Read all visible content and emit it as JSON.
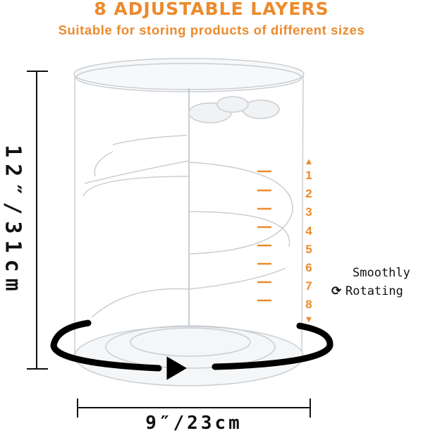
{
  "header": {
    "title": "8 ADJUSTABLE LAYERS",
    "subtitle": "Suitable for storing products of different sizes"
  },
  "dimensions": {
    "height": "12″/31cm",
    "width": "9″/23cm"
  },
  "layers": {
    "labels": [
      "1",
      "2",
      "3",
      "4",
      "5",
      "6",
      "7",
      "8"
    ],
    "up_icon": "triangle-up-icon",
    "down_icon": "triangle-down-icon"
  },
  "rotation": {
    "line1": "Smoothly",
    "line2": "Rotating",
    "icon": "rotate-icon"
  },
  "colors": {
    "accent": "#ec8a2c",
    "text": "#111111",
    "acrylic": "#c9ced3"
  }
}
